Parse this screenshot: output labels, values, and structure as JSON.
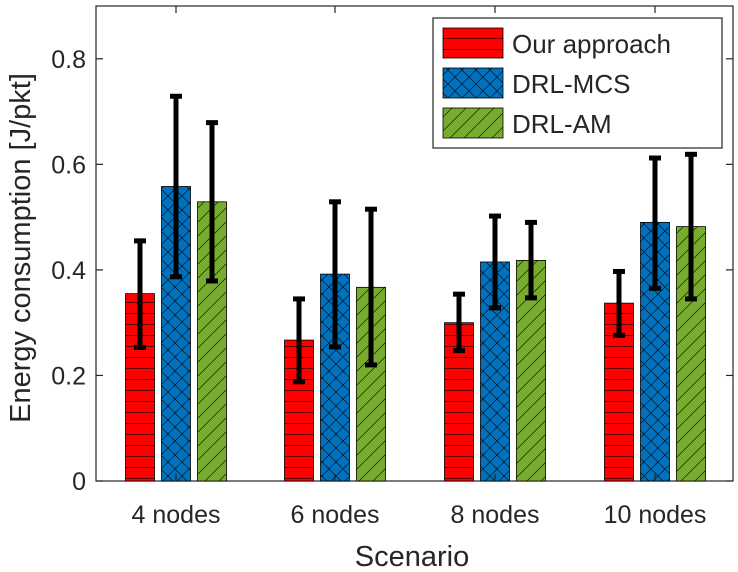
{
  "chart_data": {
    "type": "bar",
    "title": "",
    "xlabel": "Scenario",
    "ylabel": "Energy consumption [J/pkt]",
    "categories": [
      "4 nodes",
      "6 nodes",
      "8 nodes",
      "10 nodes"
    ],
    "ylim": [
      0,
      0.9
    ],
    "yticks": [
      0,
      0.2,
      0.4,
      0.6,
      0.8
    ],
    "ytick_labels": [
      "0",
      "0.2",
      "0.4",
      "0.6",
      "0.8"
    ],
    "grid": false,
    "legend_position": "top-right",
    "error_bars": true,
    "series": [
      {
        "name": "Our approach",
        "color": "#ff0000",
        "hatch": "horizontal",
        "values": [
          0.355,
          0.267,
          0.3,
          0.337
        ],
        "err_low": [
          0.253,
          0.188,
          0.247,
          0.276
        ],
        "err_high": [
          0.455,
          0.345,
          0.354,
          0.397
        ]
      },
      {
        "name": "DRL-MCS",
        "color": "#0072bd",
        "hatch": "crosshatch",
        "values": [
          0.558,
          0.392,
          0.415,
          0.49
        ],
        "err_low": [
          0.387,
          0.254,
          0.328,
          0.365
        ],
        "err_high": [
          0.729,
          0.529,
          0.502,
          0.612
        ]
      },
      {
        "name": "DRL-AM",
        "color": "#77ac30",
        "hatch": "diagonal",
        "values": [
          0.529,
          0.367,
          0.418,
          0.482
        ],
        "err_low": [
          0.379,
          0.22,
          0.347,
          0.345
        ],
        "err_high": [
          0.679,
          0.515,
          0.49,
          0.619
        ]
      }
    ]
  }
}
